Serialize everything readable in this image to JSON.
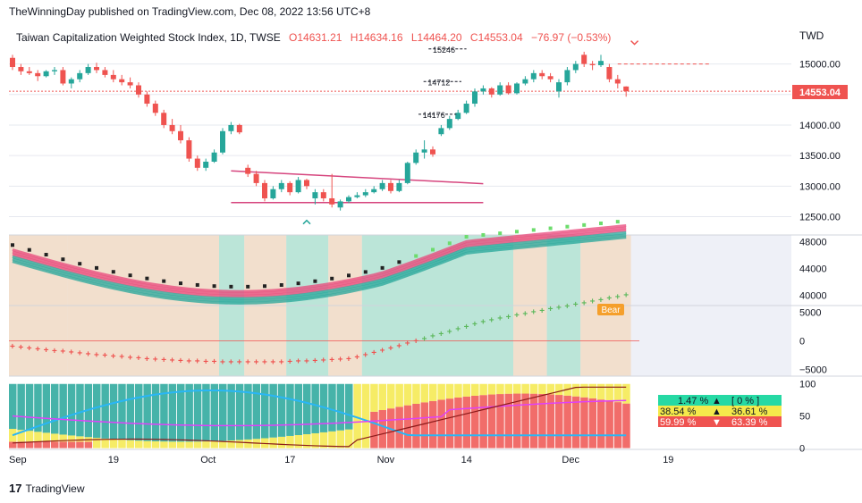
{
  "header": {
    "publisher_text": "TheWinningDay published on TradingView.com, Dec 08, 2022 13:56 UTC+8"
  },
  "footer": {
    "brand": "TradingView",
    "logo_glyph": "17"
  },
  "symbol": {
    "name": "Taiwan Capitalization Weighted Stock Index, 1D, TWSE",
    "open": "O14631.21",
    "high": "H14634.16",
    "low": "L14464.20",
    "close": "C14553.04",
    "change": "−76.97 (−0.53%)",
    "currency": "TWD",
    "last_price_label": "14553.04"
  },
  "colors": {
    "up": "#26a69a",
    "down": "#ef5350",
    "pink": "#d6457e",
    "panel_bg": "#eef0f7",
    "bull_zone": "#b2e3d2",
    "bear_zone": "#f2dcc6"
  },
  "chart_data": [
    {
      "type": "candlestick",
      "title": "Taiwan Capitalization Weighted Stock Index, 1D, TWSE",
      "y_ticks": [
        12500,
        13000,
        13500,
        14000,
        14500,
        15000
      ],
      "y_tick_labels": [
        "12500.00",
        "13000.00",
        "13500.00",
        "14000.00",
        "14500.00",
        "15000.00"
      ],
      "ylim": [
        12200,
        15550
      ],
      "x_tick_labels": [
        "Sep",
        "19",
        "Oct",
        "17",
        "Nov",
        "14",
        "Dec",
        "19"
      ],
      "last_price": 14553.04,
      "annotations": [
        "15246",
        "14712",
        "14176"
      ],
      "candles": [
        [
          15100,
          15150,
          14900,
          14950
        ],
        [
          14950,
          15000,
          14820,
          14880
        ],
        [
          14880,
          14950,
          14820,
          14850
        ],
        [
          14850,
          14900,
          14720,
          14800
        ],
        [
          14800,
          14900,
          14780,
          14880
        ],
        [
          14880,
          14950,
          14820,
          14900
        ],
        [
          14900,
          14950,
          14650,
          14680
        ],
        [
          14680,
          14780,
          14600,
          14750
        ],
        [
          14750,
          14900,
          14700,
          14850
        ],
        [
          14850,
          15000,
          14820,
          14950
        ],
        [
          14950,
          15020,
          14850,
          14900
        ],
        [
          14900,
          14950,
          14780,
          14820
        ],
        [
          14820,
          14900,
          14700,
          14750
        ],
        [
          14750,
          14820,
          14650,
          14700
        ],
        [
          14700,
          14780,
          14600,
          14650
        ],
        [
          14650,
          14700,
          14450,
          14500
        ],
        [
          14500,
          14550,
          14300,
          14350
        ],
        [
          14350,
          14400,
          14150,
          14200
        ],
        [
          14200,
          14250,
          13950,
          14000
        ],
        [
          14000,
          14100,
          13850,
          13900
        ],
        [
          13900,
          14000,
          13700,
          13750
        ],
        [
          13750,
          13800,
          13400,
          13450
        ],
        [
          13450,
          13500,
          13250,
          13300
        ],
        [
          13300,
          13450,
          13250,
          13400
        ],
        [
          13400,
          13600,
          13380,
          13550
        ],
        [
          13550,
          13950,
          13520,
          13900
        ],
        [
          13900,
          14050,
          13850,
          14000
        ],
        [
          14000,
          14020,
          13850,
          13880
        ],
        [
          13300,
          13350,
          13150,
          13200
        ],
        [
          13200,
          13250,
          13000,
          13050
        ],
        [
          13050,
          13100,
          12750,
          12800
        ],
        [
          12800,
          13000,
          12780,
          12950
        ],
        [
          12950,
          13100,
          12900,
          13050
        ],
        [
          13050,
          13080,
          12850,
          12900
        ],
        [
          12900,
          13150,
          12880,
          13100
        ],
        [
          13100,
          13120,
          12950,
          13000
        ],
        [
          12800,
          12950,
          12700,
          12900
        ],
        [
          12900,
          12950,
          12750,
          12800
        ],
        [
          12800,
          13200,
          12650,
          12700
        ],
        [
          12650,
          12780,
          12600,
          12750
        ],
        [
          12750,
          12850,
          12720,
          12820
        ],
        [
          12820,
          12900,
          12800,
          12850
        ],
        [
          12850,
          12950,
          12820,
          12900
        ],
        [
          12900,
          13000,
          12880,
          12950
        ],
        [
          12950,
          13100,
          12920,
          13050
        ],
        [
          13050,
          13100,
          12880,
          12920
        ],
        [
          12920,
          13100,
          12900,
          13050
        ],
        [
          13050,
          13400,
          13030,
          13380
        ],
        [
          13380,
          13600,
          13350,
          13550
        ],
        [
          13550,
          13750,
          13450,
          13600
        ],
        [
          13600,
          13650,
          13480,
          13520
        ],
        [
          13850,
          14000,
          13820,
          13950
        ],
        [
          13950,
          14150,
          13920,
          14100
        ],
        [
          14100,
          14250,
          14080,
          14200
        ],
        [
          14200,
          14400,
          14180,
          14350
        ],
        [
          14350,
          14600,
          14300,
          14550
        ],
        [
          14550,
          14650,
          14500,
          14600
        ],
        [
          14600,
          14620,
          14450,
          14500
        ],
        [
          14500,
          14700,
          14480,
          14650
        ],
        [
          14650,
          14700,
          14500,
          14520
        ],
        [
          14520,
          14700,
          14500,
          14680
        ],
        [
          14680,
          14800,
          14650,
          14750
        ],
        [
          14750,
          14900,
          14700,
          14850
        ],
        [
          14850,
          14900,
          14750,
          14800
        ],
        [
          14800,
          14850,
          14700,
          14750
        ],
        [
          14550,
          14750,
          14450,
          14700
        ],
        [
          14700,
          14950,
          14650,
          14900
        ],
        [
          14900,
          15050,
          14850,
          15000
        ],
        [
          15150,
          15200,
          14950,
          15000
        ],
        [
          15000,
          15050,
          14900,
          14980
        ],
        [
          14980,
          15150,
          14950,
          15050
        ],
        [
          14950,
          15000,
          14700,
          14750
        ],
        [
          14750,
          14820,
          14600,
          14680
        ],
        [
          14631.21,
          14634.16,
          14464.2,
          14553.04
        ]
      ]
    },
    {
      "type": "line",
      "title": "",
      "y_ticks": [
        40000,
        44000,
        48000
      ]
    },
    {
      "type": "line",
      "title": "",
      "y_ticks": [
        -5000,
        0,
        5000
      ],
      "y_tick_labels": [
        "−5000",
        "0",
        "5000"
      ],
      "label": "Bear"
    },
    {
      "type": "bar",
      "title": "",
      "y_ticks": [
        0,
        50,
        100
      ],
      "readouts": {
        "r1_left": "1.47 %",
        "r1_mid": "▲",
        "r1_right": "[ 0 % ]",
        "r2_left": "38.54 %",
        "r2_mid": "▲",
        "r2_right": "36.61 %",
        "r3_left": "59.99 %",
        "r3_mid": "▼",
        "r3_right": "63.39 %"
      }
    }
  ]
}
